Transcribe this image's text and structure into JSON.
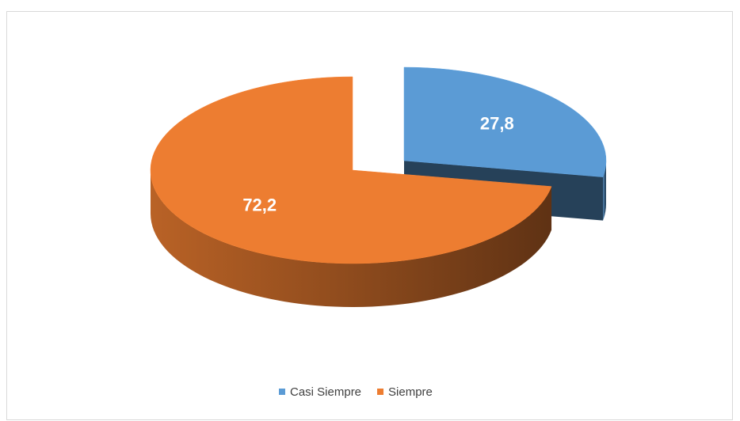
{
  "chart_data": {
    "type": "pie",
    "categories": [
      "Casi Siempre",
      "Siempre"
    ],
    "values": [
      27.8,
      72.2
    ],
    "value_labels": [
      "27,8",
      "72,2"
    ],
    "colors": [
      "#5b9bd5",
      "#ed7d31"
    ],
    "legend": "bottom"
  }
}
